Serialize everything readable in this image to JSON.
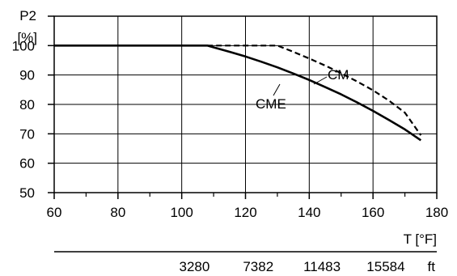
{
  "chart_data": {
    "type": "line",
    "ylabel_line1": "P2",
    "ylabel_line2": "[%]",
    "xlabel": "T [°F]",
    "altitude_unit": "ft",
    "xlim": [
      60,
      180
    ],
    "ylim": [
      50,
      110
    ],
    "grid": true,
    "x_ticks": [
      "60",
      "80",
      "100",
      "120",
      "140",
      "160",
      "180"
    ],
    "x_tick_values": [
      60,
      80,
      100,
      120,
      140,
      160,
      180
    ],
    "y_ticks": [
      "50",
      "60",
      "70",
      "80",
      "90",
      "100",
      "[%]"
    ],
    "y_tick_values": [
      50,
      60,
      70,
      80,
      90,
      100,
      110
    ],
    "altitude_ticks": [
      "3280",
      "7382",
      "11483",
      "15584"
    ],
    "altitude_tick_positions": [
      104,
      124,
      144,
      164
    ],
    "series": [
      {
        "name": "CME",
        "style": "solid",
        "color": "#000000",
        "x": [
          60,
          108,
          110,
          115,
          120,
          125,
          130,
          135,
          140,
          145,
          150,
          155,
          160,
          165,
          170,
          175
        ],
        "y": [
          100,
          100,
          99.4,
          97.9,
          96.3,
          94.5,
          92.6,
          90.5,
          88.3,
          85.9,
          83.4,
          80.7,
          77.8,
          74.7,
          71.5,
          67.8
        ]
      },
      {
        "name": "CM",
        "style": "dashed",
        "color": "#000000",
        "x": [
          108,
          130,
          135,
          140,
          145,
          150,
          155,
          160,
          165,
          170,
          175
        ],
        "y": [
          100,
          100,
          97.9,
          95.6,
          93.2,
          90.6,
          87.8,
          84.8,
          81.3,
          77.2,
          69.5
        ]
      }
    ]
  }
}
